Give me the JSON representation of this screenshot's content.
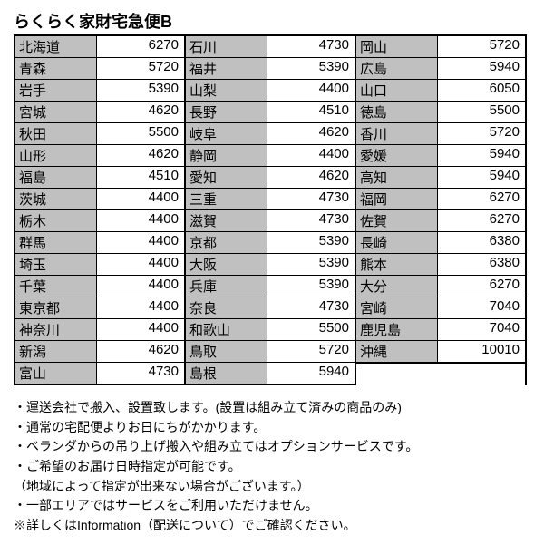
{
  "title": "らくらく家財宅急便B",
  "columns": [
    [
      {
        "pref": "北海道",
        "price": 6270
      },
      {
        "pref": "青森",
        "price": 5720
      },
      {
        "pref": "岩手",
        "price": 5390
      },
      {
        "pref": "宮城",
        "price": 4620
      },
      {
        "pref": "秋田",
        "price": 5500
      },
      {
        "pref": "山形",
        "price": 4620
      },
      {
        "pref": "福島",
        "price": 4510
      },
      {
        "pref": "茨城",
        "price": 4400
      },
      {
        "pref": "栃木",
        "price": 4400
      },
      {
        "pref": "群馬",
        "price": 4400
      },
      {
        "pref": "埼玉",
        "price": 4400
      },
      {
        "pref": "千葉",
        "price": 4400
      },
      {
        "pref": "東京都",
        "price": 4400
      },
      {
        "pref": "神奈川",
        "price": 4400
      },
      {
        "pref": "新潟",
        "price": 4620
      },
      {
        "pref": "富山",
        "price": 4730
      }
    ],
    [
      {
        "pref": "石川",
        "price": 4730
      },
      {
        "pref": "福井",
        "price": 5390
      },
      {
        "pref": "山梨",
        "price": 4400
      },
      {
        "pref": "長野",
        "price": 4510
      },
      {
        "pref": "岐阜",
        "price": 4620
      },
      {
        "pref": "静岡",
        "price": 4400
      },
      {
        "pref": "愛知",
        "price": 4620
      },
      {
        "pref": "三重",
        "price": 4730
      },
      {
        "pref": "滋賀",
        "price": 4730
      },
      {
        "pref": "京都",
        "price": 5390
      },
      {
        "pref": "大阪",
        "price": 5390
      },
      {
        "pref": "兵庫",
        "price": 5390
      },
      {
        "pref": "奈良",
        "price": 4730
      },
      {
        "pref": "和歌山",
        "price": 5500
      },
      {
        "pref": "鳥取",
        "price": 5720
      },
      {
        "pref": "島根",
        "price": 5940
      }
    ],
    [
      {
        "pref": "岡山",
        "price": 5720
      },
      {
        "pref": "広島",
        "price": 5940
      },
      {
        "pref": "山口",
        "price": 6050
      },
      {
        "pref": "徳島",
        "price": 5500
      },
      {
        "pref": "香川",
        "price": 5720
      },
      {
        "pref": "愛媛",
        "price": 5940
      },
      {
        "pref": "高知",
        "price": 5940
      },
      {
        "pref": "福岡",
        "price": 6270
      },
      {
        "pref": "佐賀",
        "price": 6270
      },
      {
        "pref": "長崎",
        "price": 6380
      },
      {
        "pref": "熊本",
        "price": 6380
      },
      {
        "pref": "大分",
        "price": 6270
      },
      {
        "pref": "宮崎",
        "price": 7040
      },
      {
        "pref": "鹿児島",
        "price": 7040
      },
      {
        "pref": "沖縄",
        "price": 10010
      }
    ]
  ],
  "notes": [
    "・運送会社で搬入、設置致します。(設置は組み立て済みの商品のみ)",
    "・通常の宅配便よりお日にちがかかります。",
    "・ベランダからの吊り上げ搬入や組み立てはオプションサービスです。",
    "・ご希望のお届け日時指定が可能です。",
    "（地域によって指定が出来ない場合がございます。）",
    "・一部エリアではサービスをご利用いただけません。",
    "※詳しくはInformation（配送について）でご確認ください。"
  ],
  "colors": {
    "header_bg": "#c0c0c0",
    "border": "#000000",
    "bg": "#ffffff"
  }
}
